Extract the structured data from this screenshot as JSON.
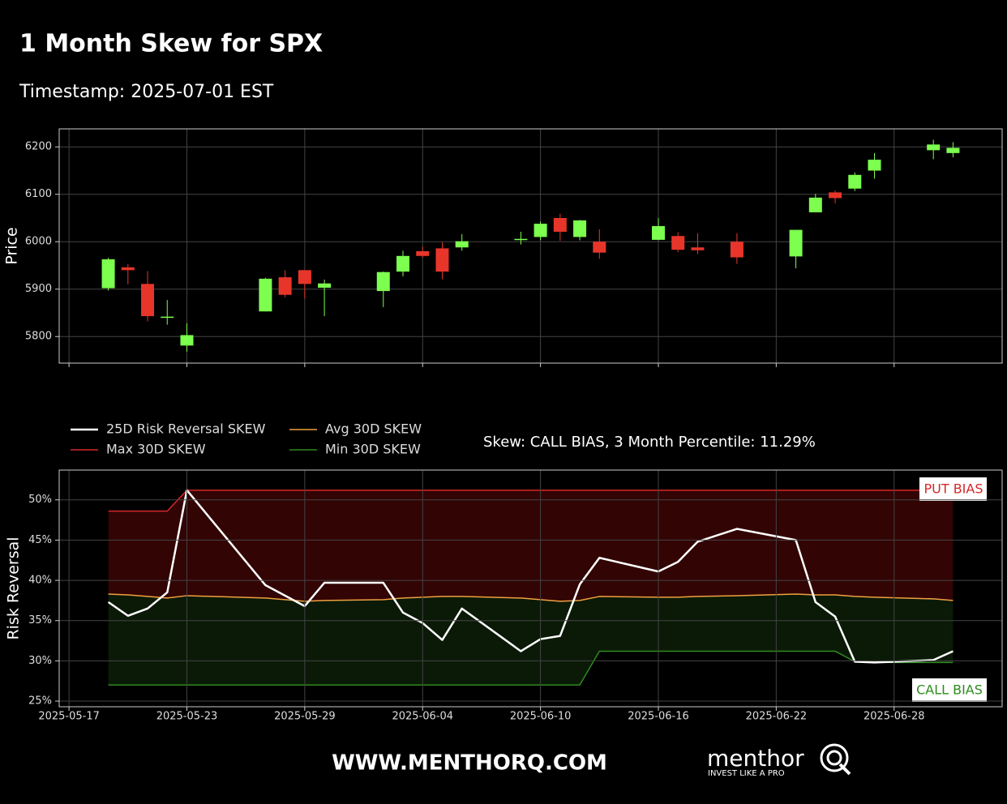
{
  "title": "1 Month Skew for SPX",
  "subtitle": "Timestamp: 2025-07-01 EST",
  "annotation": "Skew: CALL BIAS, 3 Month Percentile: 11.29%",
  "footer": {
    "url": "WWW.MENTHORQ.COM",
    "brand": "menthor",
    "tagline": "INVEST LIKE A PRO"
  },
  "chart_data": [
    {
      "type": "candlestick",
      "ylabel": "Price",
      "grid": true,
      "up_color": "#7dff4f",
      "down_color": "#e8352a",
      "x": [
        "2025-05-19",
        "2025-05-20",
        "2025-05-21",
        "2025-05-22",
        "2025-05-23",
        "2025-05-27",
        "2025-05-28",
        "2025-05-29",
        "2025-05-30",
        "2025-06-02",
        "2025-06-03",
        "2025-06-04",
        "2025-06-05",
        "2025-06-06",
        "2025-06-09",
        "2025-06-10",
        "2025-06-11",
        "2025-06-12",
        "2025-06-13",
        "2025-06-16",
        "2025-06-17",
        "2025-06-18",
        "2025-06-20",
        "2025-06-23",
        "2025-06-24",
        "2025-06-25",
        "2025-06-26",
        "2025-06-27",
        "2025-06-30",
        "2025-07-01"
      ],
      "open": [
        5902,
        5946,
        5911,
        5841,
        5781,
        5853,
        5925,
        5940,
        5903,
        5896,
        5937,
        5980,
        5986,
        5988,
        6004,
        6010,
        6050,
        6010,
        6000,
        6004,
        6012,
        5988,
        6000,
        5969,
        6062,
        6104,
        6112,
        6150,
        6193,
        6187
      ],
      "high": [
        5966,
        5953,
        5938,
        5877,
        5828,
        5924,
        5940,
        5940,
        5920,
        5937,
        5981,
        5990,
        5999,
        6016,
        6021,
        6043,
        6059,
        6046,
        6026,
        6050,
        6020,
        6018,
        6018,
        6025,
        6101,
        6108,
        6146,
        6187,
        6215,
        6210
      ],
      "low": [
        5897,
        5910,
        5832,
        5825,
        5768,
        5853,
        5883,
        5880,
        5843,
        5862,
        5927,
        5966,
        5921,
        5981,
        5994,
        6003,
        6002,
        6003,
        5964,
        6003,
        5978,
        5974,
        5953,
        5944,
        6062,
        6081,
        6107,
        6133,
        6174,
        6178
      ],
      "close": [
        5963,
        5940,
        5843,
        5842,
        5803,
        5922,
        5888,
        5911,
        5912,
        5936,
        5970,
        5970,
        5937,
        6001,
        6006,
        6038,
        6021,
        6045,
        5977,
        6033,
        5983,
        5982,
        5967,
        6025,
        6093,
        6092,
        6141,
        6173,
        6205,
        6198
      ],
      "xlim": [
        "2025-05-16T12:00:00Z",
        "2025-07-03T12:00:00Z"
      ],
      "xticks": [
        "2025-05-17",
        "2025-05-23",
        "2025-05-29",
        "2025-06-04",
        "2025-06-10",
        "2025-06-16",
        "2025-06-22",
        "2025-06-28"
      ],
      "show_xtick_labels": false,
      "ylim": [
        5744,
        6238
      ],
      "yticks": [
        5800,
        5900,
        6000,
        6100,
        6200
      ]
    },
    {
      "type": "line",
      "ylabel": "Risk Reversal",
      "grid": true,
      "x": [
        "2025-05-19",
        "2025-05-20",
        "2025-05-21",
        "2025-05-22",
        "2025-05-23",
        "2025-05-27",
        "2025-05-29",
        "2025-05-30",
        "2025-06-02",
        "2025-06-03",
        "2025-06-04",
        "2025-06-05",
        "2025-06-06",
        "2025-06-09",
        "2025-06-10",
        "2025-06-11",
        "2025-06-12",
        "2025-06-13",
        "2025-06-16",
        "2025-06-17",
        "2025-06-18",
        "2025-06-20",
        "2025-06-23",
        "2025-06-24",
        "2025-06-25",
        "2025-06-26",
        "2025-06-27",
        "2025-06-30",
        "2025-07-01"
      ],
      "series": [
        {
          "name": "25D Risk Reversal SKEW",
          "color": "#ffffff",
          "width": 2.5,
          "values": [
            37.3,
            35.6,
            36.5,
            38.5,
            51.2,
            39.4,
            36.8,
            39.7,
            39.7,
            36.0,
            34.7,
            32.6,
            36.5,
            31.2,
            32.7,
            33.1,
            39.5,
            42.8,
            41.1,
            42.3,
            44.8,
            46.4,
            45.0,
            37.3,
            35.5,
            29.9,
            29.8,
            30.1,
            31.2
          ]
        },
        {
          "name": "Max 30D SKEW",
          "color": "#d62728",
          "width": 1.5,
          "fill_color": "#320404",
          "values": [
            48.6,
            48.6,
            48.6,
            48.6,
            51.2,
            51.2,
            51.2,
            51.2,
            51.2,
            51.2,
            51.2,
            51.2,
            51.2,
            51.2,
            51.2,
            51.2,
            51.2,
            51.2,
            51.2,
            51.2,
            51.2,
            51.2,
            51.2,
            51.2,
            51.2,
            51.2,
            51.2,
            51.2,
            51.2
          ]
        },
        {
          "name": "Avg 30D SKEW",
          "color": "#f0a040",
          "width": 1.5,
          "fill_color": "#0b1a07",
          "values": [
            38.3,
            38.2,
            38.0,
            37.8,
            38.1,
            37.8,
            37.4,
            37.5,
            37.6,
            37.8,
            37.9,
            38.0,
            38.0,
            37.8,
            37.6,
            37.4,
            37.5,
            38.0,
            37.9,
            37.9,
            38.0,
            38.1,
            38.3,
            38.2,
            38.2,
            38.0,
            37.9,
            37.7,
            37.5
          ]
        },
        {
          "name": "Min 30D SKEW",
          "color": "#2e8b1e",
          "width": 1.5,
          "values": [
            27.0,
            27.0,
            27.0,
            27.0,
            27.0,
            27.0,
            27.0,
            27.0,
            27.0,
            27.0,
            27.0,
            27.0,
            27.0,
            27.0,
            27.0,
            27.0,
            27.0,
            31.2,
            31.2,
            31.2,
            31.2,
            31.2,
            31.2,
            31.2,
            31.2,
            29.9,
            29.8,
            29.8,
            29.8
          ]
        }
      ],
      "labels": {
        "put_bias": "PUT BIAS",
        "call_bias": "CALL BIAS"
      },
      "xlim": [
        "2025-05-16T12:00:00Z",
        "2025-07-03T12:00:00Z"
      ],
      "xticks": [
        "2025-05-17",
        "2025-05-23",
        "2025-05-29",
        "2025-06-04",
        "2025-06-10",
        "2025-06-16",
        "2025-06-22",
        "2025-06-28"
      ],
      "show_xtick_labels": true,
      "ylim": [
        24.3,
        53.7
      ],
      "yticks": [
        {
          "value": 25,
          "label": "25%"
        },
        {
          "value": 30,
          "label": "30%"
        },
        {
          "value": 35,
          "label": "35%"
        },
        {
          "value": 40,
          "label": "40%"
        },
        {
          "value": 45,
          "label": "45%"
        },
        {
          "value": 50,
          "label": "50%"
        }
      ]
    }
  ]
}
